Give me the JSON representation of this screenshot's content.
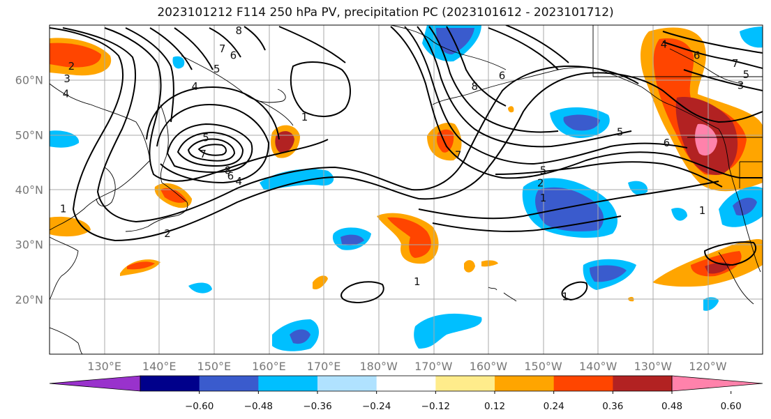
{
  "title": "2023101212 F114 250 hPa PV, precipitation PC (2023101612 - 2023101712)",
  "map": {
    "lon_range": [
      120,
      250
    ],
    "lat_range": [
      10,
      70
    ],
    "lat_labels": [
      {
        "lat": 60,
        "text": "60°N"
      },
      {
        "lat": 50,
        "text": "50°N"
      },
      {
        "lat": 40,
        "text": "40°N"
      },
      {
        "lat": 30,
        "text": "30°N"
      },
      {
        "lat": 20,
        "text": "20°N"
      }
    ],
    "lon_labels": [
      {
        "lon": 130,
        "text": "130°E"
      },
      {
        "lon": 140,
        "text": "140°E"
      },
      {
        "lon": 150,
        "text": "150°E"
      },
      {
        "lon": 160,
        "text": "160°E"
      },
      {
        "lon": 170,
        "text": "170°E"
      },
      {
        "lon": 180,
        "text": "180°W"
      },
      {
        "lon": 190,
        "text": "170°W"
      },
      {
        "lon": 200,
        "text": "160°W"
      },
      {
        "lon": 210,
        "text": "150°W"
      },
      {
        "lon": 220,
        "text": "140°W"
      },
      {
        "lon": 230,
        "text": "130°W"
      },
      {
        "lon": 240,
        "text": "120°W"
      }
    ],
    "grid": true,
    "contour_labels": [
      {
        "text": "2",
        "lon": 124,
        "lat": 62.5
      },
      {
        "text": "3",
        "lon": 123.2,
        "lat": 60.2
      },
      {
        "text": "4",
        "lon": 123,
        "lat": 57.5
      },
      {
        "text": "8",
        "lon": 154.5,
        "lat": 69
      },
      {
        "text": "6",
        "lon": 153.5,
        "lat": 64.5
      },
      {
        "text": "7",
        "lon": 151.5,
        "lat": 65.7
      },
      {
        "text": "5",
        "lon": 150.5,
        "lat": 62
      },
      {
        "text": "4",
        "lon": 146.5,
        "lat": 58.8
      },
      {
        "text": "1",
        "lon": 166.5,
        "lat": 53.2
      },
      {
        "text": "5",
        "lon": 148.5,
        "lat": 49.5
      },
      {
        "text": "7",
        "lon": 148,
        "lat": 46.5
      },
      {
        "text": "8",
        "lon": 152.5,
        "lat": 43.5
      },
      {
        "text": "6",
        "lon": 153,
        "lat": 42.5
      },
      {
        "text": "4",
        "lon": 154.5,
        "lat": 41.5
      },
      {
        "text": "1",
        "lon": 122.5,
        "lat": 36.5
      },
      {
        "text": "2",
        "lon": 141.5,
        "lat": 32
      },
      {
        "text": "8",
        "lon": 197.5,
        "lat": 58.8
      },
      {
        "text": "6",
        "lon": 202.5,
        "lat": 60.8
      },
      {
        "text": "7",
        "lon": 194.5,
        "lat": 46.3
      },
      {
        "text": "5",
        "lon": 210,
        "lat": 43.5
      },
      {
        "text": "2",
        "lon": 209.5,
        "lat": 41.2
      },
      {
        "text": "1",
        "lon": 210,
        "lat": 38.5
      },
      {
        "text": "5",
        "lon": 224,
        "lat": 50.5
      },
      {
        "text": "6",
        "lon": 232.5,
        "lat": 48.5
      },
      {
        "text": "4",
        "lon": 232,
        "lat": 66.5
      },
      {
        "text": "6",
        "lon": 238,
        "lat": 64.5
      },
      {
        "text": "7",
        "lon": 245,
        "lat": 63
      },
      {
        "text": "5",
        "lon": 247,
        "lat": 61
      },
      {
        "text": "3",
        "lon": 246,
        "lat": 59
      },
      {
        "text": "1",
        "lon": 239,
        "lat": 36.2
      },
      {
        "text": "1",
        "lon": 187,
        "lat": 23.2
      },
      {
        "text": "1",
        "lon": 214,
        "lat": 20.5
      }
    ]
  },
  "colorbar": {
    "ticks": [
      "−0.60",
      "−0.48",
      "−0.36",
      "−0.24",
      "−0.12",
      "0.12",
      "0.24",
      "0.36",
      "0.48",
      "0.60"
    ],
    "colors": [
      "#9932cc",
      "#00008b",
      "#3a5bcd",
      "#00bfff",
      "#b0e2ff",
      "#ffffff",
      "#ffec8b",
      "#ffa500",
      "#ff4500",
      "#b22222",
      "#ff82ab"
    ]
  }
}
